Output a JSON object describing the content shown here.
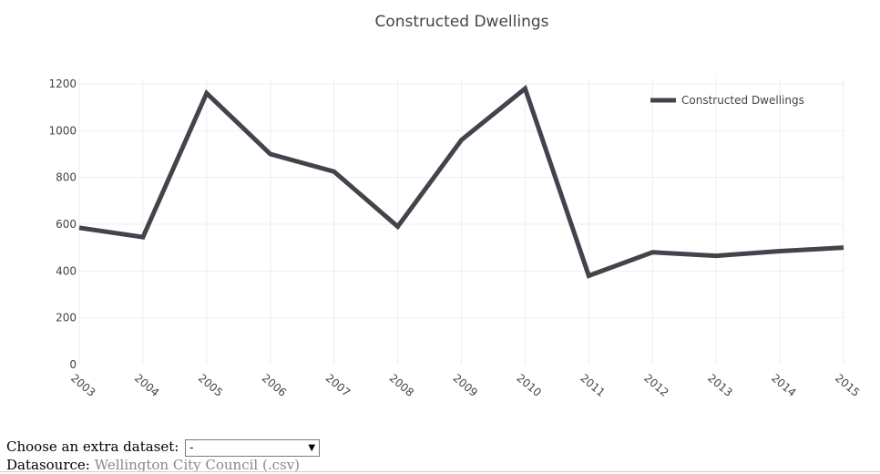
{
  "chart_data": {
    "type": "line",
    "title": "Constructed Dwellings",
    "xlabel": "",
    "ylabel": "",
    "x": [
      "2003",
      "2004",
      "2005",
      "2006",
      "2007",
      "2008",
      "2009",
      "2010",
      "2011",
      "2012",
      "2013",
      "2014",
      "2015"
    ],
    "series": [
      {
        "name": "Constructed Dwellings",
        "values": [
          585,
          545,
          1160,
          900,
          825,
          590,
          960,
          1180,
          380,
          480,
          465,
          485,
          500
        ],
        "color": "#43434b"
      }
    ],
    "yticks": [
      0,
      200,
      400,
      600,
      800,
      1000,
      1200
    ],
    "ylim": [
      0,
      1200
    ],
    "grid": true,
    "legend": "top-right"
  },
  "controls": {
    "dataset_label": "Choose an extra dataset:",
    "dataset_value": "-",
    "dataset_arrow": "▼",
    "source_label": "Datasource:",
    "source_link": "Wellington City Council (.csv)"
  }
}
